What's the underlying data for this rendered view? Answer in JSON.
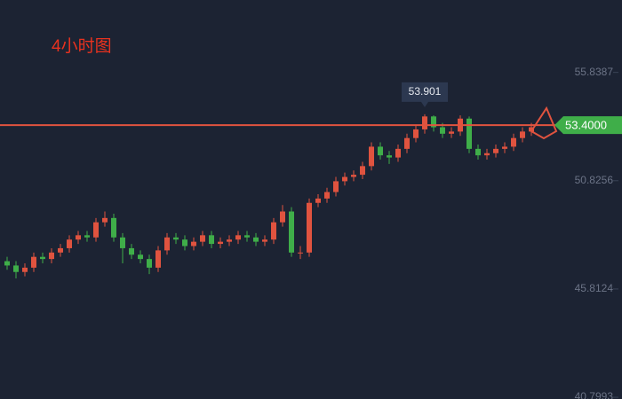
{
  "chart_data": {
    "type": "candlestick",
    "title": "4小时图",
    "ylim": [
      40.72,
      59.19
    ],
    "yticks": [
      55.8387,
      50.8256,
      45.8124,
      40.7993
    ],
    "up_color": "#e0533f",
    "down_color": "#3fae49",
    "price_line": {
      "value": 53.4,
      "label": "53.4000"
    },
    "price_line_color": "#e0533f",
    "price_tag_color": "#3fae49",
    "peak_index": 47,
    "series": {
      "open": [
        47.1,
        46.9,
        46.6,
        46.8,
        47.3,
        47.2,
        47.5,
        47.7,
        48.1,
        48.3,
        48.2,
        48.9,
        49.1,
        48.2,
        47.7,
        47.4,
        47.2,
        46.8,
        47.6,
        48.2,
        48.1,
        47.8,
        48.0,
        48.3,
        47.9,
        48.0,
        48.1,
        48.3,
        48.2,
        48.0,
        48.1,
        48.9,
        49.4,
        47.5,
        47.5,
        49.8,
        50.0,
        50.3,
        50.8,
        51.0,
        51.1,
        51.5,
        52.4,
        52.0,
        51.9,
        52.3,
        52.8,
        53.2,
        53.8,
        53.3,
        53.0,
        53.1,
        53.7,
        52.3,
        52.0,
        52.1,
        52.3,
        52.4,
        52.8,
        53.1
      ],
      "high": [
        47.3,
        47.1,
        47.0,
        47.5,
        47.5,
        47.7,
        47.9,
        48.3,
        48.5,
        48.5,
        49.1,
        49.4,
        49.3,
        48.4,
        47.9,
        47.6,
        47.4,
        47.8,
        48.4,
        48.4,
        48.3,
        48.2,
        48.5,
        48.5,
        48.2,
        48.3,
        48.5,
        48.5,
        48.4,
        48.3,
        49.1,
        49.7,
        49.6,
        47.8,
        50.0,
        50.2,
        50.5,
        51.0,
        51.2,
        51.3,
        51.7,
        52.6,
        52.6,
        52.2,
        52.5,
        53.0,
        53.4,
        53.901,
        53.85,
        53.5,
        53.3,
        53.85,
        53.8,
        52.5,
        52.3,
        52.5,
        52.6,
        53.0,
        53.3,
        53.5
      ],
      "low": [
        46.7,
        46.3,
        46.4,
        46.6,
        47.0,
        47.0,
        47.3,
        47.5,
        47.9,
        48.0,
        48.0,
        48.7,
        48.0,
        47.0,
        47.2,
        47.0,
        46.5,
        46.6,
        47.4,
        47.9,
        47.6,
        47.6,
        47.8,
        47.7,
        47.7,
        47.8,
        47.9,
        48.0,
        47.8,
        47.8,
        47.9,
        48.7,
        47.3,
        47.2,
        47.3,
        49.6,
        49.8,
        50.1,
        50.6,
        50.8,
        50.9,
        51.3,
        51.8,
        51.6,
        51.7,
        52.1,
        52.6,
        53.0,
        53.1,
        52.8,
        52.8,
        52.9,
        52.1,
        51.8,
        51.8,
        51.9,
        52.1,
        52.2,
        52.6,
        52.9
      ],
      "close": [
        46.9,
        46.6,
        46.8,
        47.3,
        47.2,
        47.5,
        47.7,
        48.1,
        48.3,
        48.2,
        48.9,
        49.1,
        48.2,
        47.7,
        47.4,
        47.2,
        46.8,
        47.6,
        48.2,
        48.1,
        47.8,
        48.0,
        48.3,
        47.9,
        48.0,
        48.1,
        48.3,
        48.2,
        48.0,
        48.1,
        48.9,
        49.4,
        47.5,
        47.5,
        49.8,
        50.0,
        50.3,
        50.8,
        51.0,
        51.1,
        51.5,
        52.4,
        52.0,
        51.9,
        52.3,
        52.8,
        53.2,
        53.8,
        53.3,
        53.0,
        53.1,
        53.7,
        52.3,
        52.0,
        52.1,
        52.3,
        52.4,
        52.8,
        53.1,
        53.3
      ]
    }
  }
}
